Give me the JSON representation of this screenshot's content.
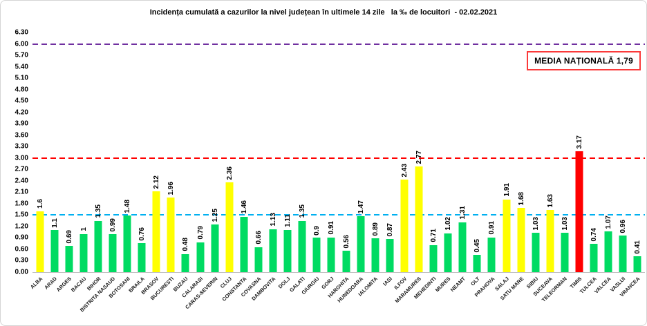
{
  "title": "Incidența cumulată a cazurilor la nivel județean în ultimele 14 zile   la ‰ de locuitori  - 02.02.2021",
  "national_average_box": {
    "label": "MEDIA NAȚIONALĂ 1,79",
    "border_color": "#fb3a3a"
  },
  "chart_data": {
    "type": "bar",
    "title": "Incidența cumulată a cazurilor la nivel județean în ultimele 14 zile   la ‰ de locuitori  - 02.02.2021",
    "xlabel": "",
    "ylabel": "",
    "ylim": [
      0,
      6.3
    ],
    "ytick_step": 0.3,
    "grid": false,
    "legend": false,
    "categories": [
      "ALBA",
      "ARAD",
      "ARGES",
      "BACAU",
      "BIHOR",
      "BISTRITA NASAUD",
      "BOTOSANI",
      "BRAILA",
      "BRASOV",
      "BUCURESTI",
      "BUZAU",
      "CALARASI",
      "CARAS-SEVERIN",
      "CLUJ",
      "CONSTANTA",
      "COVASNA",
      "DAMBOVITA",
      "DOLJ",
      "GALATI",
      "GIURGIU",
      "GORJ",
      "HARGHITA",
      "HUNEDOARA",
      "IALOMITA",
      "IASI",
      "ILFOV",
      "MARAMURES",
      "MEHEDINTI",
      "MURES",
      "NEAMT",
      "OLT",
      "PRAHOVA",
      "SALAJ",
      "SATU MARE",
      "SIBIU",
      "SUCEAVA",
      "TELEORMAN",
      "TIMIS",
      "TULCEA",
      "VALCEA",
      "VASLUI",
      "VRANCEA"
    ],
    "values": [
      1.6,
      1.1,
      0.69,
      1,
      1.35,
      0.99,
      1.48,
      0.76,
      2.12,
      1.96,
      0.48,
      0.79,
      1.25,
      2.36,
      1.46,
      0.66,
      1.13,
      1.11,
      1.35,
      0.9,
      0.91,
      0.56,
      1.47,
      0.89,
      0.87,
      2.43,
      2.77,
      0.71,
      1.02,
      1.31,
      0.45,
      0.91,
      1.91,
      1.68,
      1.03,
      1.63,
      1.03,
      3.17,
      0.74,
      1.07,
      0.96,
      0.41
    ],
    "value_labels": [
      "1.6",
      "1.1",
      "0.69",
      "1",
      "1.35",
      "0.99",
      "1.48",
      "0.76",
      "2.12",
      "1.96",
      "0.48",
      "0.79",
      "1.25",
      "2.36",
      "1.46",
      "0.66",
      "1.13",
      "1.11",
      "1.35",
      "0.9",
      "0.91",
      "0.56",
      "1.47",
      "0.89",
      "0.87",
      "2.43",
      "2.77",
      "0.71",
      "1.02",
      "1.31",
      "0.45",
      "0.91",
      "1.91",
      "1.68",
      "1.03",
      "1.63",
      "1.03",
      "3.17",
      "0.74",
      "1.07",
      "0.96",
      "0.41"
    ],
    "bar_color_keys": [
      "yellow",
      "green",
      "green",
      "green",
      "green",
      "green",
      "green",
      "green",
      "yellow",
      "yellow",
      "green",
      "green",
      "green",
      "yellow",
      "green",
      "green",
      "green",
      "green",
      "green",
      "green",
      "green",
      "green",
      "green",
      "green",
      "green",
      "yellow",
      "yellow",
      "green",
      "green",
      "green",
      "green",
      "green",
      "yellow",
      "yellow",
      "green",
      "yellow",
      "green",
      "red",
      "green",
      "green",
      "green",
      "green"
    ],
    "palette": {
      "green": "#00db62",
      "yellow": "#ffff00",
      "red": "#ff0000"
    },
    "reference_lines": [
      {
        "name": "purple-dashed-line",
        "value": 6.0,
        "color": "#7030a0"
      },
      {
        "name": "red-dashed-line",
        "value": 3.0,
        "color": "#ff0000"
      },
      {
        "name": "blue-dashed-line",
        "value": 1.5,
        "color": "#00b0f0"
      }
    ]
  }
}
